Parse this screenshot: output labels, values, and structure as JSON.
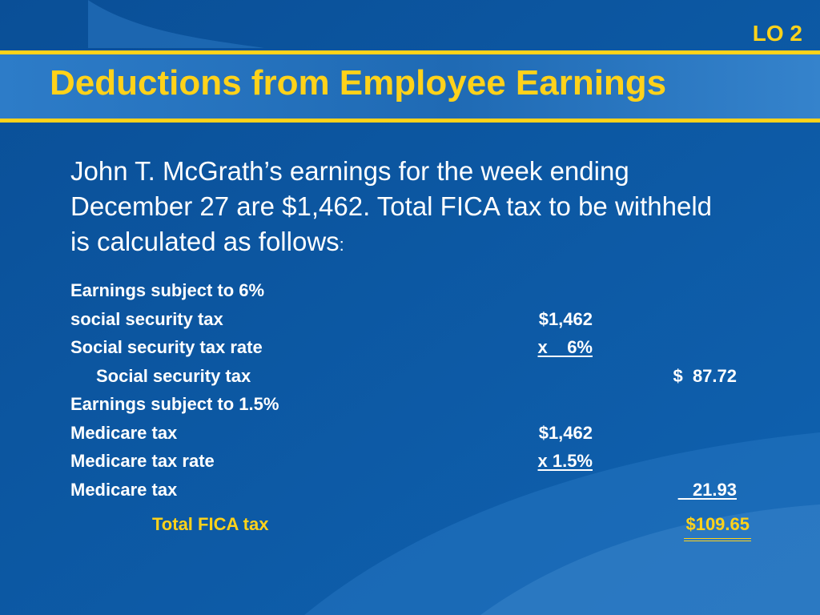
{
  "slide": {
    "lo_tag": "LO 2",
    "title": "Deductions from Employee Earnings",
    "intro_lines": [
      "John T. McGrath’s earnings for the week ending",
      "December 27 are $1,462. Total FICA tax to be withheld",
      "is calculated as follows"
    ],
    "intro_colon": ":",
    "rows": [
      {
        "label": "Earnings subject to 6%",
        "col1": "",
        "col2": ""
      },
      {
        "label": "social security tax",
        "col1": "$1,462",
        "col2": ""
      },
      {
        "label": "Social security tax rate",
        "col1": "x    6%",
        "col2": ""
      },
      {
        "label": "Social security tax",
        "col1": "",
        "col2": "$  87.72"
      },
      {
        "label": "Earnings subject to 1.5%",
        "col1": "",
        "col2": ""
      },
      {
        "label": "Medicare tax",
        "col1": "$1,462",
        "col2": ""
      },
      {
        "label": "Medicare tax rate",
        "col1": "x 1.5%",
        "col2": ""
      },
      {
        "label": "Medicare tax",
        "col1": "",
        "col2": "   21.93"
      }
    ],
    "total_label": "Total FICA tax",
    "total_value": "$109.65",
    "colors": {
      "background": "#0b5aa5",
      "accent": "#ffd21a",
      "text": "#ffffff"
    }
  }
}
